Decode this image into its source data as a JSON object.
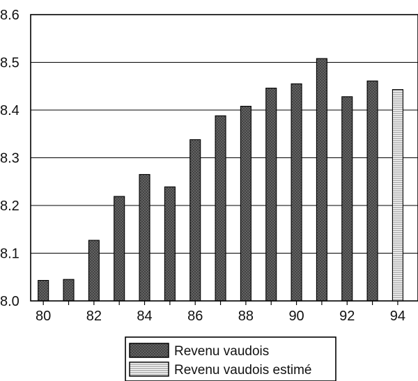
{
  "chart_data": {
    "type": "bar",
    "title": "",
    "xlabel": "",
    "ylabel": "",
    "ylim": [
      8.0,
      8.6
    ],
    "y_ticks": [
      "8.0",
      "8.1",
      "8.2",
      "8.3",
      "8.4",
      "8.5",
      "8.6"
    ],
    "x_tick_labels": [
      {
        "year": 1980,
        "label": "80"
      },
      {
        "year": 1982,
        "label": "82"
      },
      {
        "year": 1984,
        "label": "84"
      },
      {
        "year": 1986,
        "label": "86"
      },
      {
        "year": 1988,
        "label": "88"
      },
      {
        "year": 1990,
        "label": "90"
      },
      {
        "year": 1992,
        "label": "92"
      },
      {
        "year": 1994,
        "label": "94"
      }
    ],
    "grid": true,
    "legend_position": "bottom-center",
    "series": [
      {
        "name": "Revenu vaudois",
        "color": "#3a3a3a",
        "pattern": "dark-crosshatch",
        "x": [
          1980,
          1981,
          1982,
          1983,
          1984,
          1985,
          1986,
          1987,
          1988,
          1989,
          1990,
          1991,
          1992,
          1993
        ],
        "values": [
          8.043,
          8.045,
          8.127,
          8.219,
          8.265,
          8.239,
          8.338,
          8.388,
          8.408,
          8.446,
          8.455,
          8.508,
          8.428,
          8.461
        ]
      },
      {
        "name": "Revenu vaudois estimé",
        "color": "#d0d0d0",
        "pattern": "light-horizontal-lines",
        "x": [
          1994
        ],
        "values": [
          8.443
        ]
      }
    ]
  }
}
